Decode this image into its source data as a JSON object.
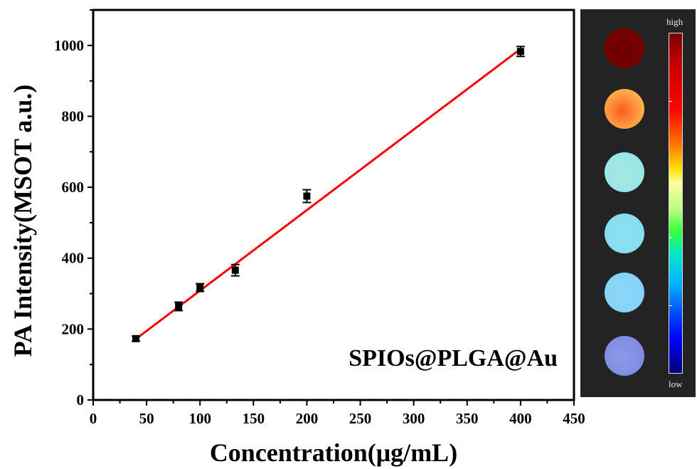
{
  "chart_data": {
    "type": "scatter",
    "xlabel": "Concentration(μg/mL)",
    "ylabel": "PA Intensity(MSOT a.u.)",
    "xlim": [
      0,
      450
    ],
    "ylim": [
      0,
      1100
    ],
    "x_ticks": [
      "0",
      "50",
      "100",
      "150",
      "200",
      "250",
      "300",
      "350",
      "400",
      "450"
    ],
    "y_ticks": [
      "0",
      "200",
      "400",
      "600",
      "800",
      "1000"
    ],
    "annotation": "SPIOs@PLGA@Au",
    "series": [
      {
        "marker": "square",
        "color": "#000000",
        "points": [
          {
            "x": 40,
            "y": 173,
            "err": 7
          },
          {
            "x": 80,
            "y": 264,
            "err": 12
          },
          {
            "x": 100,
            "y": 317,
            "err": 11
          },
          {
            "x": 133,
            "y": 366,
            "err": 16
          },
          {
            "x": 200,
            "y": 575,
            "err": 18
          },
          {
            "x": 400,
            "y": 983,
            "err": 14
          }
        ]
      }
    ],
    "fit_line": {
      "color": "#ff0000",
      "x": [
        40,
        400
      ],
      "y": [
        172,
        990
      ]
    },
    "grid": false
  },
  "colorbar": {
    "high_label": "high",
    "low_label": "low",
    "samples": [
      {
        "color_center": "#6e0000",
        "color_edge": "#7a0000"
      },
      {
        "color_center": "#ff5a20",
        "color_edge": "#ffd860"
      },
      {
        "color_center": "#a8e8e0",
        "color_edge": "#90e4ec"
      },
      {
        "color_center": "#8ee0ee",
        "color_edge": "#80dcf0"
      },
      {
        "color_center": "#8ed8f8",
        "color_edge": "#80d0f8"
      },
      {
        "color_center": "#8c98e6",
        "color_edge": "#7a86e0"
      }
    ]
  }
}
